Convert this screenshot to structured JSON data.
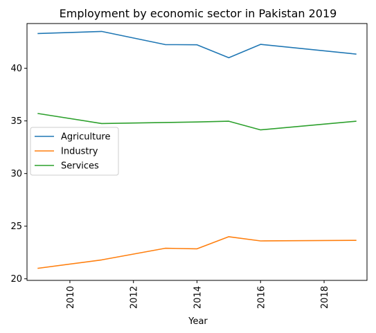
{
  "chart_data": {
    "type": "line",
    "title": "Employment by economic sector in Pakistan 2019",
    "xlabel": "Year",
    "ylabel": "",
    "x": [
      2009,
      2011,
      2013,
      2014,
      2015,
      2016,
      2019
    ],
    "xlim": [
      2008.65,
      2019.35
    ],
    "ylim": [
      19.85,
      44.25
    ],
    "xticks": [
      2010,
      2012,
      2014,
      2016,
      2018
    ],
    "yticks": [
      20,
      25,
      30,
      35,
      40
    ],
    "grid": false,
    "legend_position": "center-left",
    "series": [
      {
        "name": "Agriculture",
        "color": "#1f77b4",
        "values": [
          43.3,
          43.5,
          42.25,
          42.23,
          41.0,
          42.27,
          41.35
        ]
      },
      {
        "name": "Industry",
        "color": "#ff7f0e",
        "values": [
          21.0,
          21.8,
          22.9,
          22.85,
          24.0,
          23.6,
          23.65
        ]
      },
      {
        "name": "Services",
        "color": "#2ca02c",
        "values": [
          35.7,
          34.75,
          34.85,
          34.9,
          34.97,
          34.15,
          34.97
        ]
      }
    ]
  }
}
